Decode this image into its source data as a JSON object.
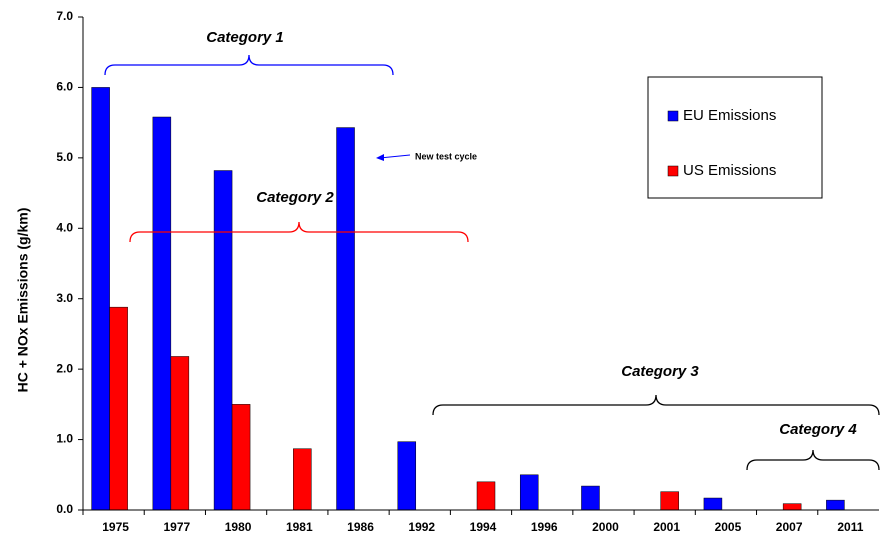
{
  "chart_data": {
    "type": "bar",
    "y_label": "HC + NOx Emissions (g/km)",
    "categories": [
      "1975",
      "1977",
      "1980",
      "1981",
      "1986",
      "1992",
      "1994",
      "1996",
      "2000",
      "2001",
      "2005",
      "2007",
      "2011"
    ],
    "series": [
      {
        "name": "EU Emissions",
        "color": "#0000ff",
        "values": [
          6.0,
          5.58,
          4.82,
          null,
          5.43,
          0.97,
          null,
          0.5,
          0.34,
          null,
          0.17,
          null,
          0.14
        ]
      },
      {
        "name": "US Emissions",
        "color": "#ff0000",
        "values": [
          2.88,
          2.18,
          1.5,
          0.87,
          null,
          null,
          0.4,
          null,
          null,
          0.26,
          null,
          0.09,
          null
        ]
      }
    ],
    "ylim": [
      0,
      7
    ],
    "yticks": [
      {
        "value": 0,
        "label": "0.0"
      },
      {
        "value": 1,
        "label": "1.0"
      },
      {
        "value": 2,
        "label": "2.0"
      },
      {
        "value": 3,
        "label": "3.0"
      },
      {
        "value": 4,
        "label": "4.0"
      },
      {
        "value": 5,
        "label": "5.0"
      },
      {
        "value": 6,
        "label": "6.0"
      },
      {
        "value": 7,
        "label": "7.0"
      }
    ],
    "grid": false,
    "legend": "upper right",
    "annotations": [
      {
        "text": "Category 1",
        "color": "#0000ff"
      },
      {
        "text": "Category 2",
        "color": "#ff0000"
      },
      {
        "text": "Category 3",
        "color": "#000000"
      },
      {
        "text": "Category 4",
        "color": "#000000"
      },
      {
        "text": "New test cycle",
        "color": "#0000ff"
      }
    ]
  }
}
